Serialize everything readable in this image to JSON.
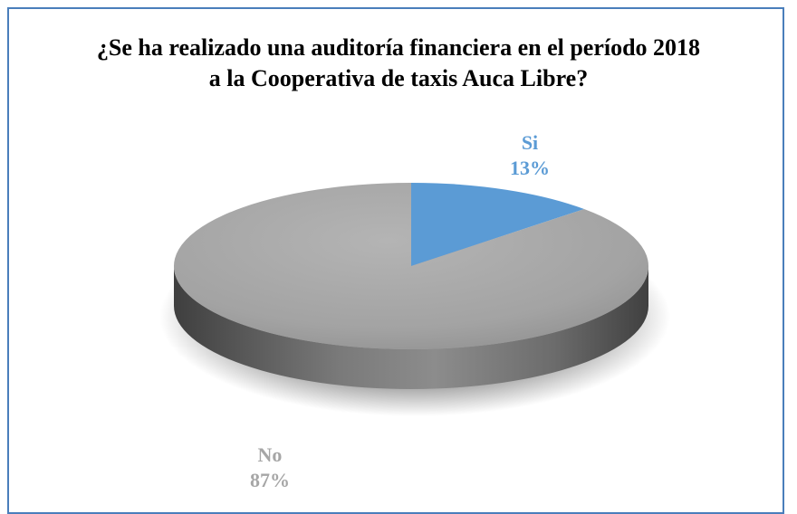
{
  "chart_data": {
    "type": "pie",
    "title": "¿Se ha realizado una auditoría financiera en el período 2018 a la Cooperativa de taxis Auca Libre?",
    "categories": [
      "Si",
      "No"
    ],
    "values": [
      13,
      87
    ],
    "value_labels": [
      "13%",
      "87%"
    ],
    "colors": [
      "#5b9bd5",
      "#a6a6a6"
    ],
    "label_colors": [
      "#5b9bd5",
      "#a6a6a6"
    ],
    "legend": "none",
    "style": "3d"
  }
}
